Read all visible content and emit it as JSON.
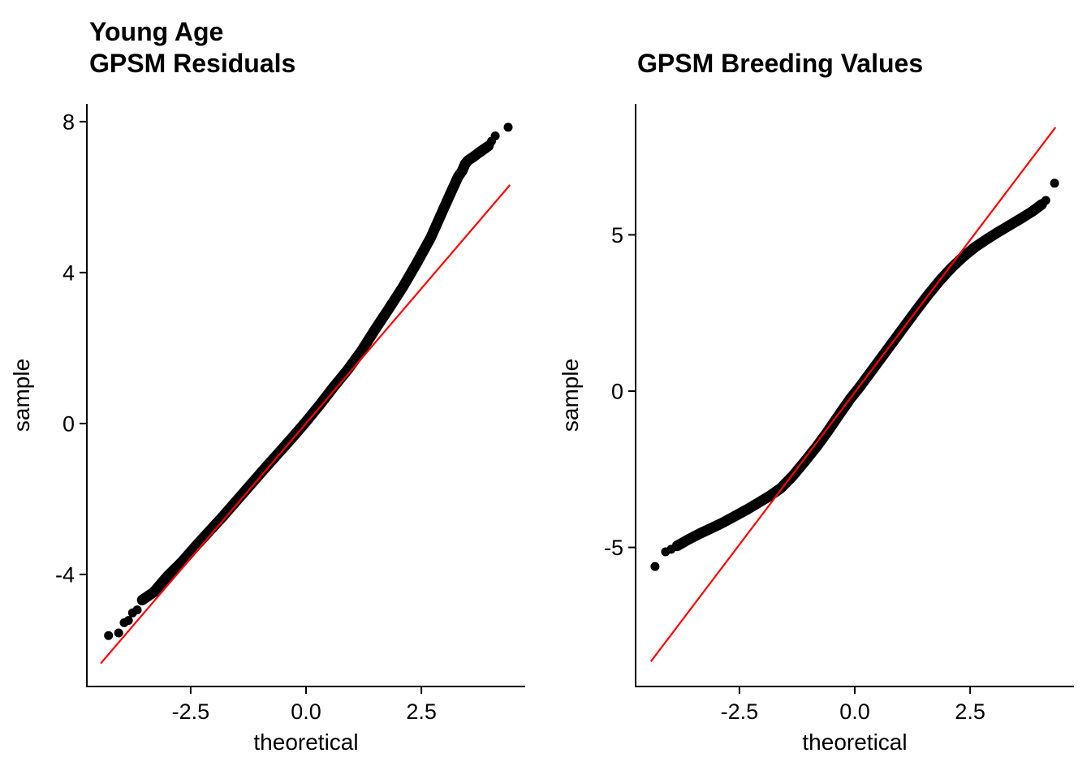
{
  "background": "#FFFFFF",
  "chart_data": [
    {
      "type": "scatter",
      "subtype": "qq-plot",
      "title_lines": [
        "Young Age",
        "GPSM Residuals"
      ],
      "xlabel": "theoretical",
      "ylabel": "sample",
      "x_ticks": [
        {
          "v": -2.5,
          "label": "-2.5"
        },
        {
          "v": 0.0,
          "label": "0.0"
        },
        {
          "v": 2.5,
          "label": "2.5"
        }
      ],
      "y_ticks": [
        {
          "v": 8,
          "label": "8"
        },
        {
          "v": 4,
          "label": "4"
        },
        {
          "v": 0,
          "label": "0"
        },
        {
          "v": -4,
          "label": "-4"
        }
      ],
      "xlim": [
        -4.75,
        4.75
      ],
      "ylim": [
        -6.97,
        8.47
      ],
      "grid": false,
      "legend": false,
      "point_color": "#000000",
      "axis_color": "#000000",
      "ref_line": {
        "color": "#FF0000",
        "x1": -4.45,
        "y1": -6.36,
        "x2": 4.42,
        "y2": 6.32
      },
      "stream": [
        [
          -3.55,
          -4.68
        ],
        [
          -3.3,
          -4.47
        ],
        [
          -3.0,
          -4.04
        ],
        [
          -2.7,
          -3.68
        ],
        [
          -2.4,
          -3.26
        ],
        [
          -2.1,
          -2.86
        ],
        [
          -1.8,
          -2.46
        ],
        [
          -1.5,
          -2.04
        ],
        [
          -1.2,
          -1.62
        ],
        [
          -0.9,
          -1.2
        ],
        [
          -0.6,
          -0.79
        ],
        [
          -0.3,
          -0.38
        ],
        [
          0.0,
          0.05
        ],
        [
          0.3,
          0.5
        ],
        [
          0.6,
          0.97
        ],
        [
          0.9,
          1.42
        ],
        [
          1.2,
          1.92
        ],
        [
          1.5,
          2.5
        ],
        [
          1.8,
          3.05
        ],
        [
          2.1,
          3.62
        ],
        [
          2.4,
          4.25
        ],
        [
          2.7,
          4.92
        ],
        [
          3.0,
          5.74
        ],
        [
          3.15,
          6.15
        ],
        [
          3.3,
          6.55
        ],
        [
          3.38,
          6.68
        ],
        [
          3.45,
          6.88
        ],
        [
          3.52,
          6.98
        ],
        [
          3.62,
          7.06
        ],
        [
          3.75,
          7.18
        ],
        [
          3.95,
          7.35
        ]
      ],
      "dots": [
        [
          -4.28,
          -5.62
        ],
        [
          -4.06,
          -5.55
        ],
        [
          -3.94,
          -5.28
        ],
        [
          -3.85,
          -5.22
        ],
        [
          -3.76,
          -5.02
        ],
        [
          -3.66,
          -4.94
        ],
        [
          3.98,
          7.4
        ],
        [
          4.02,
          7.48
        ],
        [
          4.1,
          7.62
        ],
        [
          4.38,
          7.85
        ]
      ]
    },
    {
      "type": "scatter",
      "subtype": "qq-plot",
      "title_lines": [
        "GPSM Breeding Values"
      ],
      "xlabel": "theoretical",
      "ylabel": "sample",
      "x_ticks": [
        {
          "v": -2.5,
          "label": "-2.5"
        },
        {
          "v": 0.0,
          "label": "0.0"
        },
        {
          "v": 2.5,
          "label": "2.5"
        }
      ],
      "y_ticks": [
        {
          "v": 5,
          "label": "5"
        },
        {
          "v": 0,
          "label": "0"
        },
        {
          "v": -5,
          "label": "-5"
        }
      ],
      "xlim": [
        -4.75,
        4.75
      ],
      "ylim": [
        -9.45,
        9.19
      ],
      "grid": false,
      "legend": false,
      "point_color": "#000000",
      "axis_color": "#000000",
      "ref_line": {
        "color": "#FF0000",
        "x1": -4.42,
        "y1": -8.65,
        "x2": 4.35,
        "y2": 8.44
      },
      "stream": [
        [
          -3.85,
          -4.95
        ],
        [
          -3.6,
          -4.74
        ],
        [
          -3.35,
          -4.55
        ],
        [
          -3.1,
          -4.38
        ],
        [
          -2.85,
          -4.2
        ],
        [
          -2.6,
          -4.0
        ],
        [
          -2.35,
          -3.8
        ],
        [
          -2.1,
          -3.58
        ],
        [
          -1.85,
          -3.36
        ],
        [
          -1.6,
          -3.1
        ],
        [
          -1.35,
          -2.72
        ],
        [
          -1.1,
          -2.28
        ],
        [
          -0.85,
          -1.82
        ],
        [
          -0.6,
          -1.32
        ],
        [
          -0.35,
          -0.78
        ],
        [
          -0.1,
          -0.25
        ],
        [
          0.1,
          0.12
        ],
        [
          0.35,
          0.62
        ],
        [
          0.6,
          1.12
        ],
        [
          0.85,
          1.62
        ],
        [
          1.1,
          2.12
        ],
        [
          1.35,
          2.62
        ],
        [
          1.6,
          3.1
        ],
        [
          1.85,
          3.55
        ],
        [
          2.1,
          3.95
        ],
        [
          2.35,
          4.3
        ],
        [
          2.6,
          4.6
        ],
        [
          2.85,
          4.85
        ],
        [
          3.1,
          5.08
        ],
        [
          3.35,
          5.3
        ],
        [
          3.6,
          5.52
        ],
        [
          3.85,
          5.75
        ],
        [
          4.05,
          5.97
        ]
      ],
      "dots": [
        [
          -4.33,
          -5.61
        ],
        [
          -4.1,
          -5.14
        ],
        [
          -3.98,
          -5.06
        ],
        [
          4.08,
          6.02
        ],
        [
          4.14,
          6.1
        ],
        [
          4.33,
          6.65
        ]
      ]
    }
  ]
}
